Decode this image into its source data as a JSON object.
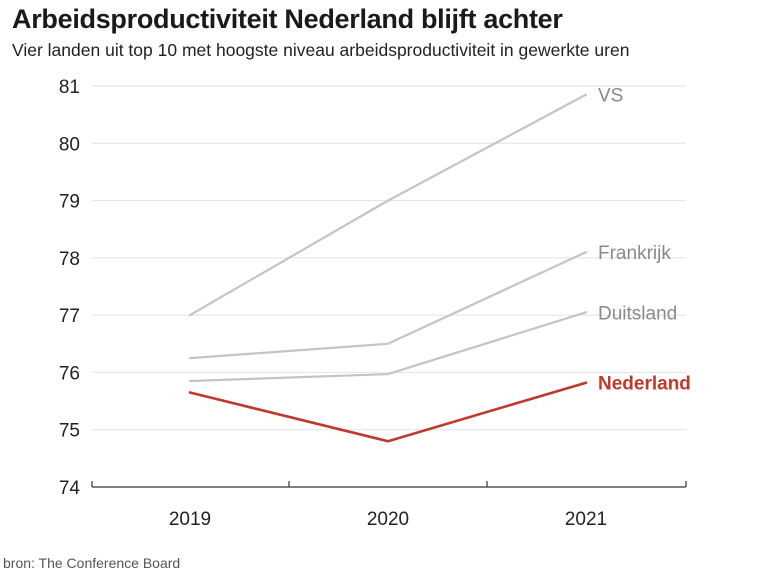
{
  "header": {
    "title": "Arbeidsproductiviteit Nederland blijft achter",
    "subtitle": "Vier landen uit top 10 met hoogste niveau arbeidsproductiviteit in gewerkte uren"
  },
  "footer": {
    "source": "bron: The Conference Board"
  },
  "chart_data": {
    "type": "line",
    "title": "Arbeidsproductiviteit Nederland blijft achter",
    "subtitle": "Vier landen uit top 10 met hoogste niveau arbeidsproductiviteit in gewerkte uren",
    "xlabel": "",
    "ylabel": "",
    "x": [
      "2019",
      "2020",
      "2021"
    ],
    "ylim": [
      74,
      81
    ],
    "yticks": [
      74,
      75,
      76,
      77,
      78,
      79,
      80,
      81
    ],
    "grid": "horizontal",
    "legend": "direct labels at line ends",
    "series": [
      {
        "name": "VS",
        "values": [
          77.0,
          79.0,
          80.85
        ],
        "color": "#c4c4c4",
        "label_color": "#8a8a8a"
      },
      {
        "name": "Frankrijk",
        "values": [
          76.25,
          76.5,
          78.1
        ],
        "color": "#c4c4c4",
        "label_color": "#8a8a8a"
      },
      {
        "name": "Duitsland",
        "values": [
          75.85,
          75.97,
          77.05
        ],
        "color": "#c4c4c4",
        "label_color": "#8a8a8a"
      },
      {
        "name": "Nederland",
        "values": [
          75.65,
          74.8,
          75.82
        ],
        "color": "#c0392b",
        "label_color": "#c0392b",
        "highlight": true
      }
    ]
  }
}
